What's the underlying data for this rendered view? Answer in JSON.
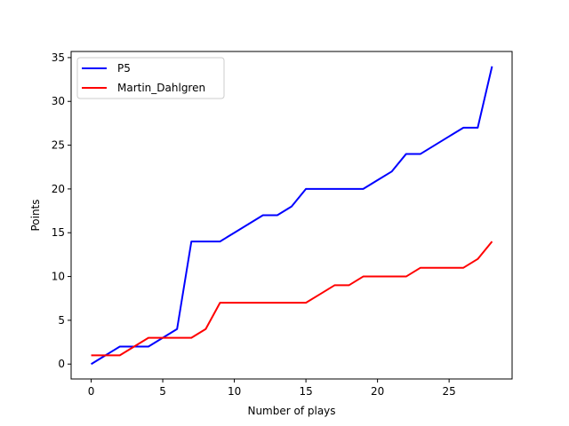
{
  "chart_data": {
    "type": "line",
    "xlabel": "Number of plays",
    "ylabel": "Points",
    "xlim": [
      -1.4,
      29.4
    ],
    "ylim": [
      -1.7,
      35.7
    ],
    "xticks": [
      0,
      5,
      10,
      15,
      20,
      25
    ],
    "yticks": [
      0,
      5,
      10,
      15,
      20,
      25,
      30,
      35
    ],
    "legend_position": "top-left",
    "grid": false,
    "series": [
      {
        "name": "P5",
        "color": "#0000ff",
        "x": [
          0,
          1,
          2,
          3,
          4,
          5,
          6,
          7,
          8,
          9,
          10,
          11,
          12,
          13,
          14,
          15,
          16,
          17,
          18,
          19,
          20,
          21,
          22,
          23,
          24,
          25,
          26,
          27,
          28
        ],
        "y": [
          0,
          1,
          2,
          2,
          2,
          3,
          4,
          14,
          14,
          14,
          15,
          16,
          17,
          17,
          18,
          20,
          20,
          20,
          20,
          20,
          21,
          22,
          24,
          24,
          25,
          26,
          27,
          27,
          34
        ]
      },
      {
        "name": "Martin_Dahlgren",
        "color": "#ff0000",
        "x": [
          0,
          1,
          2,
          3,
          4,
          5,
          6,
          7,
          8,
          9,
          10,
          11,
          12,
          13,
          14,
          15,
          16,
          17,
          18,
          19,
          20,
          21,
          22,
          23,
          24,
          25,
          26,
          27,
          28
        ],
        "y": [
          1,
          1,
          1,
          2,
          3,
          3,
          3,
          3,
          4,
          7,
          7,
          7,
          7,
          7,
          7,
          7,
          8,
          9,
          9,
          10,
          10,
          10,
          10,
          11,
          11,
          11,
          11,
          12,
          14
        ]
      }
    ]
  }
}
